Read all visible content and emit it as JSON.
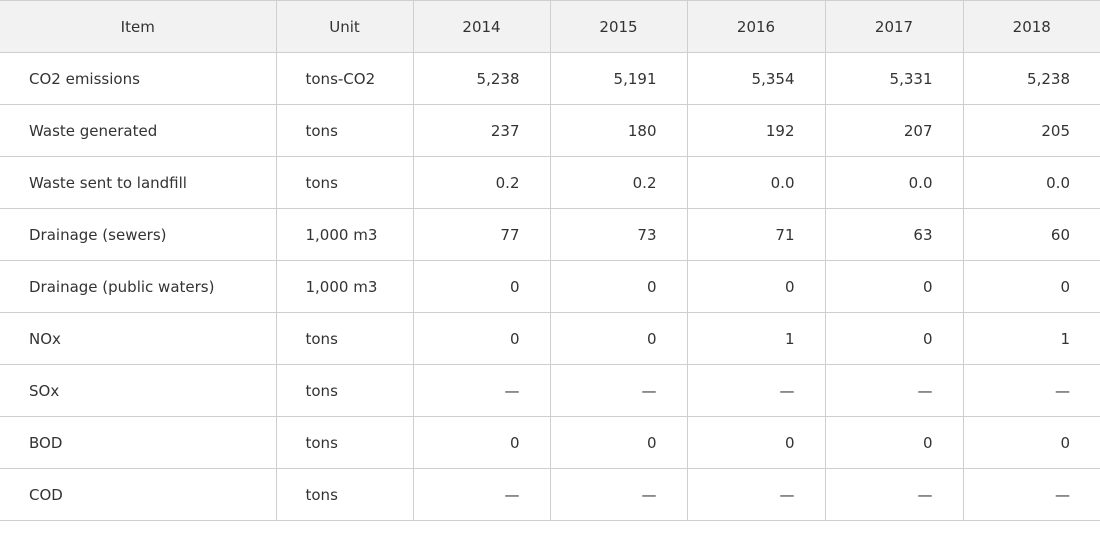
{
  "table": {
    "headers": [
      "Item",
      "Unit",
      "2014",
      "2015",
      "2016",
      "2017",
      "2018"
    ],
    "rows": [
      {
        "item": "CO2 emissions",
        "unit": "tons-CO2",
        "values": [
          "5,238",
          "5,191",
          "5,354",
          "5,331",
          "5,238"
        ]
      },
      {
        "item": "Waste generated",
        "unit": "tons",
        "values": [
          "237",
          "180",
          "192",
          "207",
          "205"
        ]
      },
      {
        "item": "Waste sent to landfill",
        "unit": "tons",
        "values": [
          "0.2",
          "0.2",
          "0.0",
          "0.0",
          "0.0"
        ]
      },
      {
        "item": "Drainage (sewers)",
        "unit": "1,000 m3",
        "values": [
          "77",
          "73",
          "71",
          "63",
          "60"
        ]
      },
      {
        "item": "Drainage (public waters)",
        "unit": "1,000 m3",
        "values": [
          "0",
          "0",
          "0",
          "0",
          "0"
        ]
      },
      {
        "item": "NOx",
        "unit": "tons",
        "values": [
          "0",
          "0",
          "1",
          "0",
          "1"
        ]
      },
      {
        "item": "SOx",
        "unit": "tons",
        "values": [
          "—",
          "—",
          "—",
          "—",
          "—"
        ]
      },
      {
        "item": "BOD",
        "unit": "tons",
        "values": [
          "0",
          "0",
          "0",
          "0",
          "0"
        ]
      },
      {
        "item": "COD",
        "unit": "tons",
        "values": [
          "—",
          "—",
          "—",
          "—",
          "—"
        ]
      }
    ]
  }
}
